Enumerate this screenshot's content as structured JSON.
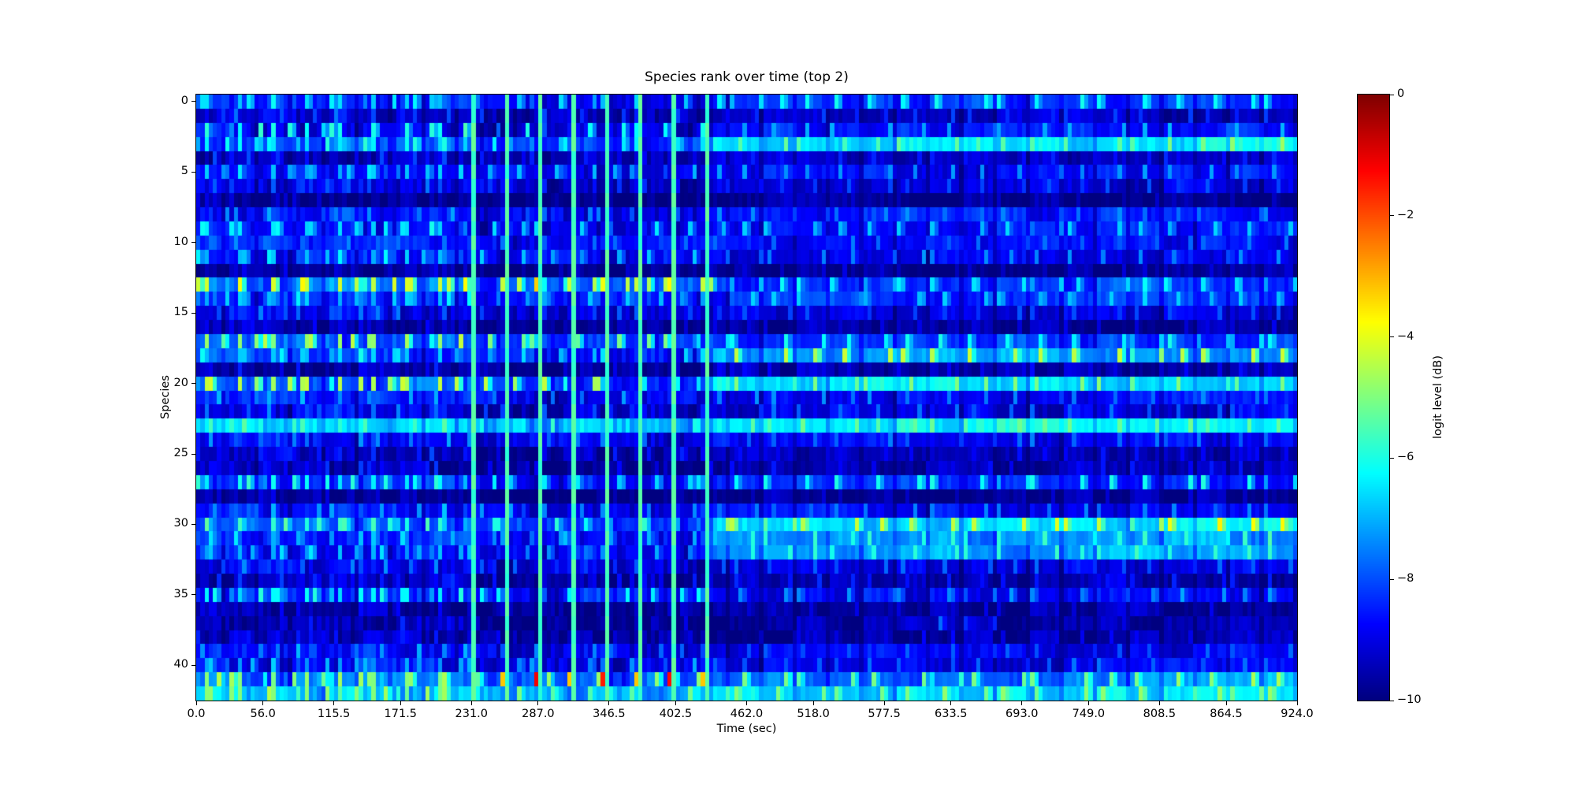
{
  "chart_data": {
    "type": "heatmap",
    "title": "Species rank over time (top 2)",
    "xlabel": "Time (sec)",
    "ylabel": "Species",
    "x_range": [
      0,
      924
    ],
    "n_rows": 43,
    "n_cols": 264,
    "col_duration_sec": 3.5,
    "x_tick_values": [
      0,
      56,
      115.5,
      171.5,
      231,
      287,
      346.5,
      402.5,
      462,
      518,
      577.5,
      633.5,
      693,
      749,
      808.5,
      864.5,
      924
    ],
    "x_tick_labels": [
      "0.0",
      "56.0",
      "115.5",
      "171.5",
      "231.0",
      "287.0",
      "346.5",
      "402.5",
      "462.0",
      "518.0",
      "577.5",
      "633.5",
      "693.0",
      "749.0",
      "808.5",
      "864.5",
      "924.0"
    ],
    "y_tick_values": [
      0,
      5,
      10,
      15,
      20,
      25,
      30,
      35,
      40
    ],
    "y_tick_labels": [
      "0",
      "5",
      "10",
      "15",
      "20",
      "25",
      "30",
      "35",
      "40"
    ],
    "colorbar": {
      "label": "logit level (dB)",
      "tick_values": [
        0,
        -2,
        -4,
        -6,
        -8,
        -10
      ],
      "tick_labels": [
        "0",
        "−2",
        "−4",
        "−6",
        "−8",
        "−10"
      ],
      "vmin": -10,
      "vmax": 0,
      "colormap": "jet",
      "color_anchors": {
        "-10": "#000080",
        "-8": "#004cff",
        "-6": "#00ffe5",
        "-4": "#e5ff19",
        "-2": "#ff4c00",
        "0": "#800000"
      }
    },
    "segments": {
      "A_cols": [
        0,
        66
      ],
      "B_cols": [
        66,
        124
      ],
      "C_cols": [
        124,
        264
      ],
      "period_cols": 8,
      "B_vertical_line_level_dB": -5.55,
      "note": "A: periodic striped regime 0-231s; B: bright full-height cyan lines every 28s (231-434s) with orange spots row13 and red spots row41; C: smoother blocky regime 434-924s"
    },
    "row_profiles": [
      {
        "bl": -8.4,
        "dl": -6.4,
        "br": -8.3,
        "dr": -6.2
      },
      {
        "bl": -9.2,
        "dl": -7.9,
        "br": -9.3,
        "dr": -8.3
      },
      {
        "bl": -8.9,
        "dl": -5.8,
        "br": -8.6,
        "dr": -7.1
      },
      {
        "bl": -7.9,
        "dl": -6.1,
        "br": -6.6,
        "dr": -5.4,
        "grad": 0.5
      },
      {
        "bl": -9.2,
        "dl": -8.3,
        "br": -9.3,
        "dr": -8.5
      },
      {
        "bl": -8.6,
        "dl": -6.6,
        "br": -8.7,
        "dr": -7.3
      },
      {
        "bl": -8.9,
        "dl": -7.9,
        "br": -9.0,
        "dr": -8.1
      },
      {
        "bl": -9.8,
        "dl": -9.3,
        "br": -9.8,
        "dr": -9.4
      },
      {
        "bl": -8.5,
        "dl": -7.3,
        "br": -8.6,
        "dr": -7.5
      },
      {
        "bl": -8.6,
        "dl": -6.3,
        "br": -8.7,
        "dr": -6.8
      },
      {
        "bl": -8.5,
        "dl": -7.5,
        "br": -8.7,
        "dr": -7.7
      },
      {
        "bl": -8.7,
        "dl": -6.6,
        "br": -8.9,
        "dr": -7.4
      },
      {
        "bl": -9.7,
        "dl": -9.1,
        "br": -9.7,
        "dr": -9.2
      },
      {
        "bl": -7.7,
        "dl": -4.0,
        "br": -8.2,
        "dr": -6.3,
        "mid": "orange"
      },
      {
        "bl": -8.3,
        "dl": -6.6,
        "br": -8.4,
        "dr": -6.8
      },
      {
        "bl": -8.8,
        "dl": -7.7,
        "br": -9.0,
        "dr": -8.1
      },
      {
        "bl": -9.6,
        "dl": -9.0,
        "br": -9.6,
        "dr": -9.1
      },
      {
        "bl": -7.9,
        "dl": -4.6,
        "br": -8.3,
        "dr": -6.2
      },
      {
        "bl": -8.3,
        "dl": -6.4,
        "br": -7.2,
        "dr": -4.4
      },
      {
        "bl": -9.5,
        "dl": -8.7,
        "br": -9.5,
        "dr": -8.8
      },
      {
        "bl": -7.8,
        "dl": -4.2,
        "br": -6.4,
        "dr": -5.1
      },
      {
        "bl": -8.6,
        "dl": -7.1,
        "br": -8.8,
        "dr": -7.5
      },
      {
        "bl": -8.9,
        "dl": -7.7,
        "br": -9.0,
        "dr": -7.8
      },
      {
        "bl": -6.6,
        "dl": -5.5,
        "br": -6.2,
        "dr": -5.3
      },
      {
        "bl": -8.6,
        "dl": -7.4,
        "br": -8.8,
        "dr": -7.7
      },
      {
        "bl": -9.2,
        "dl": -8.3,
        "br": -9.4,
        "dr": -8.7
      },
      {
        "bl": -9.4,
        "dl": -8.5,
        "br": -9.5,
        "dr": -8.7
      },
      {
        "bl": -8.3,
        "dl": -6.0,
        "br": -8.4,
        "dr": -6.1
      },
      {
        "bl": -9.7,
        "dl": -9.2,
        "br": -9.8,
        "dr": -9.3
      },
      {
        "bl": -8.5,
        "dl": -7.1,
        "br": -8.7,
        "dr": -7.6
      },
      {
        "bl": -7.9,
        "dl": -5.5,
        "br": -6.6,
        "dr": -4.3,
        "grad": 0.6
      },
      {
        "bl": -8.3,
        "dl": -6.7,
        "br": -7.4,
        "dr": -5.9,
        "grad": 0.4
      },
      {
        "bl": -8.5,
        "dl": -6.8,
        "br": -7.3,
        "dr": -5.9,
        "grad": 0.4
      },
      {
        "bl": -8.8,
        "dl": -7.6,
        "br": -9.0,
        "dr": -7.9
      },
      {
        "bl": -9.3,
        "dl": -8.4,
        "br": -9.4,
        "dr": -8.5
      },
      {
        "bl": -8.3,
        "dl": -6.1,
        "br": -8.9,
        "dr": -7.3
      },
      {
        "bl": -9.6,
        "dl": -9.0,
        "br": -9.7,
        "dr": -9.1
      },
      {
        "bl": -9.5,
        "dl": -8.7,
        "br": -9.6,
        "dr": -7.7,
        "sparse": true
      },
      {
        "bl": -9.4,
        "dl": -8.7,
        "br": -9.6,
        "dr": -8.9
      },
      {
        "bl": -8.6,
        "dl": -7.3,
        "br": -8.9,
        "dr": -7.9
      },
      {
        "bl": -8.7,
        "dl": -6.9,
        "br": -9.0,
        "dr": -7.8
      },
      {
        "bl": -7.6,
        "dl": -4.6,
        "br": -7.8,
        "dr": -5.2,
        "mid": "red",
        "grad": 0.5
      },
      {
        "bl": -6.9,
        "dl": -4.8,
        "br": -6.7,
        "dr": -5.0,
        "grad": 0.4
      }
    ]
  }
}
